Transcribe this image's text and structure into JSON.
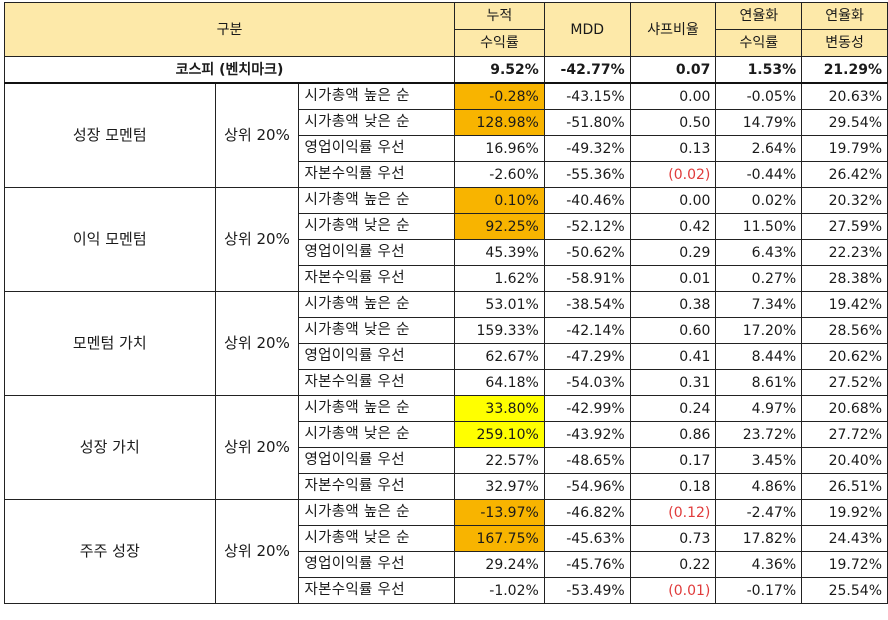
{
  "header": {
    "category": "구분",
    "columns": [
      {
        "line1": "누적",
        "line2": "수익률"
      },
      {
        "line1": "MDD",
        "line2": ""
      },
      {
        "line1": "샤프비율",
        "line2": ""
      },
      {
        "line1": "연율화",
        "line2": "수익률"
      },
      {
        "line1": "연율화",
        "line2": "변동성"
      }
    ]
  },
  "benchmark": {
    "label": "코스피 (벤치마크)",
    "values": [
      "9.52%",
      "-42.77%",
      "0.07",
      "1.53%",
      "21.29%"
    ]
  },
  "groups": [
    {
      "name": "성장 모멘텀",
      "tier": "상위 20%",
      "rows": [
        {
          "strategy": "시가총액 높은 순",
          "values": [
            "-0.28%",
            "-43.15%",
            "0.00",
            "-0.05%",
            "20.63%"
          ],
          "highlight": "orange",
          "sharpe_negative": false
        },
        {
          "strategy": "시가총액 낮은 순",
          "values": [
            "128.98%",
            "-51.80%",
            "0.50",
            "14.79%",
            "29.54%"
          ],
          "highlight": "orange",
          "sharpe_negative": false
        },
        {
          "strategy": "영업이익률 우선",
          "values": [
            "16.96%",
            "-49.32%",
            "0.13",
            "2.64%",
            "19.79%"
          ],
          "highlight": "",
          "sharpe_negative": false
        },
        {
          "strategy": "자본수익률 우선",
          "values": [
            "-2.60%",
            "-55.36%",
            "(0.02)",
            "-0.44%",
            "26.42%"
          ],
          "highlight": "",
          "sharpe_negative": true
        }
      ]
    },
    {
      "name": "이익 모멘텀",
      "tier": "상위 20%",
      "rows": [
        {
          "strategy": "시가총액 높은 순",
          "values": [
            "0.10%",
            "-40.46%",
            "0.00",
            "0.02%",
            "20.32%"
          ],
          "highlight": "orange",
          "sharpe_negative": false
        },
        {
          "strategy": "시가총액 낮은 순",
          "values": [
            "92.25%",
            "-52.12%",
            "0.42",
            "11.50%",
            "27.59%"
          ],
          "highlight": "orange",
          "sharpe_negative": false
        },
        {
          "strategy": "영업이익률 우선",
          "values": [
            "45.39%",
            "-50.62%",
            "0.29",
            "6.43%",
            "22.23%"
          ],
          "highlight": "",
          "sharpe_negative": false
        },
        {
          "strategy": "자본수익률 우선",
          "values": [
            "1.62%",
            "-58.91%",
            "0.01",
            "0.27%",
            "28.38%"
          ],
          "highlight": "",
          "sharpe_negative": false
        }
      ]
    },
    {
      "name": "모멘텀 가치",
      "tier": "상위 20%",
      "rows": [
        {
          "strategy": "시가총액 높은 순",
          "values": [
            "53.01%",
            "-38.54%",
            "0.38",
            "7.34%",
            "19.42%"
          ],
          "highlight": "",
          "sharpe_negative": false
        },
        {
          "strategy": "시가총액 낮은 순",
          "values": [
            "159.33%",
            "-42.14%",
            "0.60",
            "17.20%",
            "28.56%"
          ],
          "highlight": "",
          "sharpe_negative": false
        },
        {
          "strategy": "영업이익률 우선",
          "values": [
            "62.67%",
            "-47.29%",
            "0.41",
            "8.44%",
            "20.62%"
          ],
          "highlight": "",
          "sharpe_negative": false
        },
        {
          "strategy": "자본수익률 우선",
          "values": [
            "64.18%",
            "-54.03%",
            "0.31",
            "8.61%",
            "27.52%"
          ],
          "highlight": "",
          "sharpe_negative": false
        }
      ]
    },
    {
      "name": "성장 가치",
      "tier": "상위 20%",
      "rows": [
        {
          "strategy": "시가총액 높은 순",
          "values": [
            "33.80%",
            "-42.99%",
            "0.24",
            "4.97%",
            "20.68%"
          ],
          "highlight": "yellow",
          "sharpe_negative": false
        },
        {
          "strategy": "시가총액 낮은 순",
          "values": [
            "259.10%",
            "-43.92%",
            "0.86",
            "23.72%",
            "27.72%"
          ],
          "highlight": "yellow",
          "sharpe_negative": false
        },
        {
          "strategy": "영업이익률 우선",
          "values": [
            "22.57%",
            "-48.65%",
            "0.17",
            "3.45%",
            "20.40%"
          ],
          "highlight": "",
          "sharpe_negative": false
        },
        {
          "strategy": "자본수익률 우선",
          "values": [
            "32.97%",
            "-54.96%",
            "0.18",
            "4.86%",
            "26.51%"
          ],
          "highlight": "",
          "sharpe_negative": false
        }
      ]
    },
    {
      "name": "주주 성장",
      "tier": "상위 20%",
      "rows": [
        {
          "strategy": "시가총액 높은 순",
          "values": [
            "-13.97%",
            "-46.82%",
            "(0.12)",
            "-2.47%",
            "19.92%"
          ],
          "highlight": "orange",
          "sharpe_negative": true
        },
        {
          "strategy": "시가총액 낮은 순",
          "values": [
            "167.75%",
            "-45.63%",
            "0.73",
            "17.82%",
            "24.43%"
          ],
          "highlight": "orange",
          "sharpe_negative": false
        },
        {
          "strategy": "영업이익률 우선",
          "values": [
            "29.24%",
            "-45.76%",
            "0.22",
            "4.36%",
            "19.72%"
          ],
          "highlight": "",
          "sharpe_negative": false
        },
        {
          "strategy": "자본수익률 우선",
          "values": [
            "-1.02%",
            "-53.49%",
            "(0.01)",
            "-0.17%",
            "25.54%"
          ],
          "highlight": "",
          "sharpe_negative": true
        }
      ]
    }
  ],
  "colors": {
    "header_bg": "#fde9a9",
    "highlight_orange": "#f8b400",
    "highlight_yellow": "#ffff00",
    "negative_text": "#e03b3b"
  }
}
